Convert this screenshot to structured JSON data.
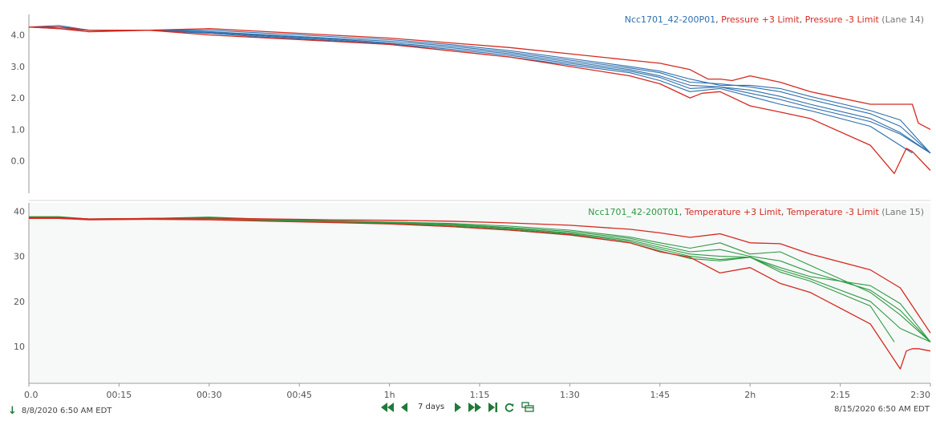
{
  "colors": {
    "pressure": "#2e6fad",
    "temperature": "#2f9a44",
    "limit": "#d42a20",
    "lane_text": "#777777",
    "panel2_bg": "#f7f8f8",
    "control": "#1f7a3a"
  },
  "legend_top": {
    "series_name": "Ncc1701_42-200P01",
    "sep1": ", ",
    "upper_limit": "Pressure +3 Limit",
    "sep2": ", ",
    "lower_limit": "Pressure -3 Limit",
    "lane": " (Lane 14)"
  },
  "legend_bottom": {
    "series_name": "Ncc1701_42-200T01",
    "sep1": ", ",
    "upper_limit": "Temperature +3 Limit",
    "sep2": ", ",
    "lower_limit": "Temperature -3 Limit",
    "lane": " (Lane 15)"
  },
  "footer": {
    "start_date": "8/8/2020 6:50 AM  EDT",
    "end_date": "8/15/2020 6:50 AM  EDT",
    "span_label": "7 days",
    "icons": [
      "rewind-icon",
      "step-back-icon",
      "step-forward-icon",
      "fast-forward-icon",
      "skip-to-end-icon",
      "refresh-icon",
      "overlay-icon"
    ]
  },
  "chart_data": [
    {
      "type": "line",
      "x_unit": "minutes",
      "xlim": [
        0,
        150
      ],
      "ylim": [
        -1.0,
        4.6
      ],
      "yticks": [
        0.0,
        1.0,
        2.0,
        3.0,
        4.0
      ],
      "ytick_labels": [
        "0.0",
        "1.0",
        "2.0",
        "3.0",
        "4.0"
      ],
      "series": [
        {
          "name": "Pressure +3 Limit",
          "role": "limit",
          "x": [
            0,
            5,
            10,
            20,
            30,
            40,
            50,
            60,
            70,
            80,
            90,
            100,
            105,
            110,
            113,
            115,
            117,
            120,
            125,
            130,
            140,
            147,
            148,
            150
          ],
          "y": [
            4.25,
            4.25,
            4.15,
            4.15,
            4.2,
            4.1,
            4.0,
            3.9,
            3.75,
            3.6,
            3.4,
            3.2,
            3.1,
            2.9,
            2.6,
            2.6,
            2.55,
            2.7,
            2.5,
            2.2,
            1.8,
            1.8,
            1.2,
            1.0
          ]
        },
        {
          "name": "Pressure -3 Limit",
          "role": "limit",
          "x": [
            0,
            5,
            10,
            20,
            30,
            40,
            50,
            60,
            70,
            80,
            90,
            100,
            105,
            110,
            112,
            115,
            120,
            125,
            130,
            140,
            144,
            146,
            147,
            150
          ],
          "y": [
            4.25,
            4.2,
            4.1,
            4.15,
            4.0,
            3.9,
            3.8,
            3.7,
            3.5,
            3.3,
            3.0,
            2.7,
            2.45,
            2.0,
            2.15,
            2.2,
            1.75,
            1.55,
            1.35,
            0.5,
            -0.4,
            0.4,
            0.3,
            -0.3
          ]
        },
        {
          "name": "Ncc1701_42-200P01",
          "role": "series",
          "x": [
            0,
            5,
            10,
            20,
            30,
            40,
            50,
            60,
            70,
            80,
            90,
            100,
            105,
            110,
            115,
            120,
            125,
            130,
            140,
            145,
            150
          ],
          "y": [
            4.25,
            4.3,
            4.15,
            4.15,
            4.15,
            4.05,
            3.95,
            3.85,
            3.7,
            3.5,
            3.25,
            3.0,
            2.85,
            2.6,
            2.4,
            2.4,
            2.3,
            2.05,
            1.6,
            1.3,
            0.25
          ]
        },
        {
          "name": "Ncc1701_42-200P01",
          "role": "series",
          "x": [
            0,
            5,
            10,
            20,
            30,
            40,
            50,
            60,
            70,
            80,
            90,
            100,
            105,
            110,
            115,
            120,
            125,
            130,
            140,
            145,
            150
          ],
          "y": [
            4.25,
            4.25,
            4.15,
            4.15,
            4.1,
            4.0,
            3.9,
            3.8,
            3.65,
            3.45,
            3.2,
            2.95,
            2.8,
            2.5,
            2.45,
            2.35,
            2.2,
            1.95,
            1.5,
            1.1,
            0.25
          ]
        },
        {
          "name": "Ncc1701_42-200P01",
          "role": "series",
          "x": [
            0,
            5,
            10,
            20,
            30,
            40,
            50,
            60,
            70,
            80,
            90,
            100,
            105,
            110,
            115,
            120,
            125,
            130,
            140,
            145,
            150
          ],
          "y": [
            4.25,
            4.25,
            4.15,
            4.15,
            4.1,
            3.98,
            3.88,
            3.75,
            3.6,
            3.4,
            3.15,
            2.9,
            2.7,
            2.4,
            2.35,
            2.25,
            2.05,
            1.8,
            1.35,
            0.9,
            0.25
          ]
        },
        {
          "name": "Ncc1701_42-200P01",
          "role": "series",
          "x": [
            0,
            5,
            10,
            20,
            30,
            40,
            50,
            60,
            70,
            80,
            90,
            100,
            105,
            110,
            115,
            120,
            125,
            130,
            140,
            145,
            150
          ],
          "y": [
            4.25,
            4.2,
            4.15,
            4.15,
            4.08,
            3.95,
            3.85,
            3.72,
            3.55,
            3.35,
            3.1,
            2.85,
            2.65,
            2.3,
            2.35,
            2.15,
            1.95,
            1.7,
            1.25,
            0.85,
            0.25
          ]
        },
        {
          "name": "Ncc1701_42-200P01",
          "role": "series",
          "x": [
            0,
            5,
            10,
            20,
            30,
            40,
            50,
            60,
            70,
            80,
            90,
            100,
            105,
            110,
            115,
            120,
            125,
            130,
            140,
            147
          ],
          "y": [
            4.25,
            4.2,
            4.15,
            4.15,
            4.05,
            3.92,
            3.82,
            3.7,
            3.5,
            3.3,
            3.05,
            2.8,
            2.55,
            2.2,
            2.3,
            2.05,
            1.8,
            1.6,
            1.1,
            0.25
          ]
        }
      ]
    },
    {
      "type": "line",
      "x_unit": "minutes",
      "xlim": [
        0,
        150
      ],
      "ylim": [
        2,
        41.5
      ],
      "yticks": [
        10,
        20,
        30,
        40
      ],
      "ytick_labels": [
        "10",
        "20",
        "30",
        "40"
      ],
      "xticks": [
        0,
        15,
        30,
        45,
        60,
        75,
        90,
        105,
        120,
        135,
        150
      ],
      "xtick_labels": [
        "0.0",
        "00:15",
        "00:30",
        "00:45",
        "1h",
        "1:15",
        "1:30",
        "1:45",
        "2h",
        "2:15",
        "2:30"
      ],
      "series": [
        {
          "name": "Temperature +3 Limit",
          "role": "limit",
          "x": [
            0,
            5,
            10,
            20,
            30,
            40,
            50,
            60,
            70,
            80,
            90,
            100,
            105,
            110,
            115,
            120,
            125,
            130,
            140,
            145,
            150
          ],
          "y": [
            38.6,
            38.6,
            38.3,
            38.4,
            38.5,
            38.3,
            38.1,
            38.0,
            37.8,
            37.4,
            36.9,
            36.0,
            35.2,
            34.2,
            35.0,
            33.0,
            32.8,
            30.5,
            27.0,
            23.0,
            13.0
          ]
        },
        {
          "name": "Temperature -3 Limit",
          "role": "limit",
          "x": [
            0,
            5,
            10,
            20,
            30,
            40,
            50,
            60,
            70,
            80,
            90,
            100,
            105,
            110,
            115,
            120,
            125,
            130,
            140,
            145,
            146,
            147,
            148,
            150
          ],
          "y": [
            38.4,
            38.4,
            38.1,
            38.2,
            38.1,
            37.8,
            37.5,
            37.2,
            36.6,
            35.8,
            34.8,
            33.0,
            31.0,
            29.8,
            26.3,
            27.5,
            24.0,
            22.0,
            15.0,
            5.0,
            9.0,
            9.5,
            9.5,
            9.0
          ]
        },
        {
          "name": "Ncc1701_42-200T01",
          "role": "series",
          "x": [
            0,
            5,
            10,
            20,
            30,
            40,
            50,
            60,
            70,
            80,
            90,
            100,
            105,
            110,
            115,
            120,
            125,
            130,
            140,
            145,
            150
          ],
          "y": [
            38.8,
            38.8,
            38.3,
            38.4,
            38.7,
            38.2,
            37.9,
            37.6,
            37.3,
            36.7,
            35.8,
            34.3,
            33.0,
            31.8,
            33.0,
            30.5,
            31.0,
            28.0,
            22.0,
            17.0,
            11.0
          ]
        },
        {
          "name": "Ncc1701_42-200T01",
          "role": "series",
          "x": [
            0,
            5,
            10,
            20,
            30,
            40,
            50,
            60,
            70,
            80,
            90,
            100,
            105,
            110,
            115,
            120,
            125,
            130,
            140,
            145,
            150
          ],
          "y": [
            38.7,
            38.7,
            38.3,
            38.4,
            38.6,
            38.1,
            37.8,
            37.5,
            37.1,
            36.4,
            35.5,
            34.0,
            32.5,
            31.0,
            31.5,
            30.0,
            29.0,
            26.5,
            22.5,
            18.0,
            11.0
          ]
        },
        {
          "name": "Ncc1701_42-200T01",
          "role": "series",
          "x": [
            0,
            5,
            10,
            20,
            30,
            40,
            50,
            60,
            70,
            80,
            90,
            100,
            105,
            110,
            115,
            120,
            125,
            130,
            140,
            145,
            150
          ],
          "y": [
            38.6,
            38.6,
            38.3,
            38.4,
            38.5,
            38.1,
            37.8,
            37.4,
            37.0,
            36.2,
            35.2,
            33.6,
            32.0,
            30.5,
            30.0,
            29.8,
            27.5,
            25.5,
            23.5,
            19.5,
            11.0
          ]
        },
        {
          "name": "Ncc1701_42-200T01",
          "role": "series",
          "x": [
            0,
            5,
            10,
            20,
            30,
            40,
            50,
            60,
            70,
            80,
            90,
            100,
            105,
            110,
            115,
            120,
            125,
            130,
            140,
            145,
            150
          ],
          "y": [
            38.5,
            38.5,
            38.2,
            38.3,
            38.4,
            38.0,
            37.7,
            37.3,
            36.8,
            36.0,
            35.0,
            33.3,
            31.6,
            30.0,
            29.3,
            29.8,
            27.0,
            25.0,
            20.0,
            14.0,
            11.0
          ]
        },
        {
          "name": "Ncc1701_42-200T01",
          "role": "series",
          "x": [
            0,
            5,
            10,
            20,
            30,
            40,
            50,
            60,
            70,
            80,
            90,
            100,
            105,
            110,
            115,
            120,
            125,
            130,
            140,
            144
          ],
          "y": [
            38.4,
            38.4,
            38.2,
            38.3,
            38.3,
            37.9,
            37.6,
            37.2,
            36.6,
            35.8,
            34.7,
            33.0,
            31.2,
            29.5,
            29.0,
            29.8,
            26.5,
            24.5,
            19.0,
            11.0
          ]
        }
      ]
    }
  ]
}
